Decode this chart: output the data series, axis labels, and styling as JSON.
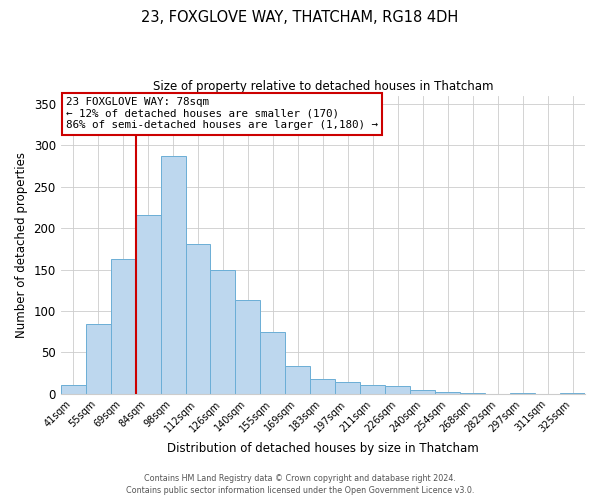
{
  "title": "23, FOXGLOVE WAY, THATCHAM, RG18 4DH",
  "subtitle": "Size of property relative to detached houses in Thatcham",
  "xlabel": "Distribution of detached houses by size in Thatcham",
  "ylabel": "Number of detached properties",
  "bin_labels": [
    "41sqm",
    "55sqm",
    "69sqm",
    "84sqm",
    "98sqm",
    "112sqm",
    "126sqm",
    "140sqm",
    "155sqm",
    "169sqm",
    "183sqm",
    "197sqm",
    "211sqm",
    "226sqm",
    "240sqm",
    "254sqm",
    "268sqm",
    "282sqm",
    "297sqm",
    "311sqm",
    "325sqm"
  ],
  "bar_values": [
    11,
    84,
    163,
    216,
    287,
    181,
    150,
    113,
    75,
    34,
    18,
    14,
    11,
    9,
    5,
    2,
    1,
    0,
    1,
    0,
    1
  ],
  "bar_color": "#BDD7EE",
  "bar_edge_color": "#6BAED6",
  "vline_x": 2.5,
  "vline_color": "#CC0000",
  "annotation_title": "23 FOXGLOVE WAY: 78sqm",
  "annotation_line1": "← 12% of detached houses are smaller (170)",
  "annotation_line2": "86% of semi-detached houses are larger (1,180) →",
  "annotation_box_color": "#CC0000",
  "ylim": [
    0,
    360
  ],
  "yticks": [
    0,
    50,
    100,
    150,
    200,
    250,
    300,
    350
  ],
  "footer1": "Contains HM Land Registry data © Crown copyright and database right 2024.",
  "footer2": "Contains public sector information licensed under the Open Government Licence v3.0."
}
